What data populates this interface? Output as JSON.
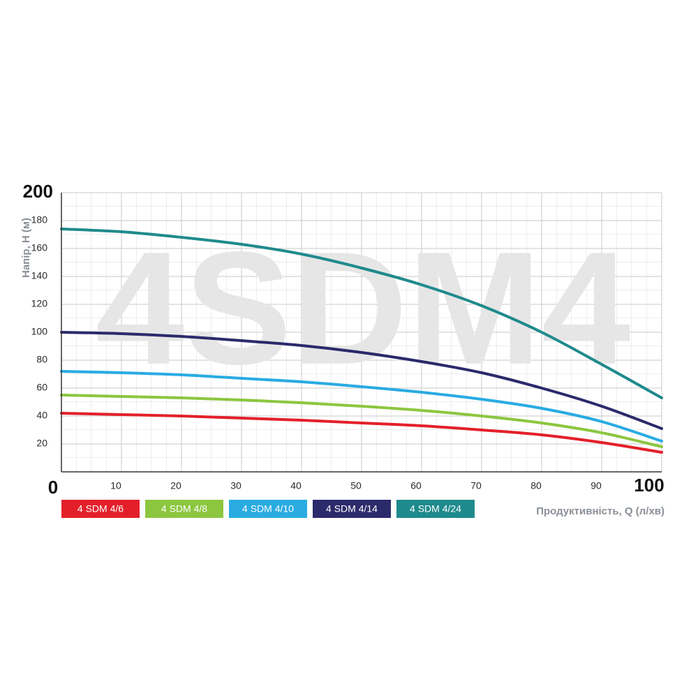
{
  "chart_data": {
    "type": "line",
    "watermark": "4SDM4",
    "y_label": "Напір, H (м)",
    "x_label": "Продуктивність, Q (л/хв)",
    "x": [
      0,
      10,
      20,
      30,
      40,
      50,
      60,
      70,
      80,
      90,
      100
    ],
    "xlim": [
      0,
      100
    ],
    "ylim": [
      0,
      200
    ],
    "xticks": [
      10,
      20,
      30,
      40,
      50,
      60,
      70,
      80,
      90,
      100
    ],
    "yticks": [
      0,
      20,
      40,
      60,
      80,
      100,
      120,
      140,
      160,
      180,
      200
    ],
    "grid": true,
    "series": [
      {
        "name": "4 SDM 4/6",
        "color": "#e3202a",
        "values": [
          42,
          41,
          40,
          38.5,
          37,
          35,
          33,
          30,
          26.5,
          21,
          14
        ]
      },
      {
        "name": "4 SDM 4/8",
        "color": "#8cc63f",
        "values": [
          55,
          54,
          53,
          51.5,
          49.5,
          47,
          44,
          40,
          35,
          28,
          18
        ]
      },
      {
        "name": "4 SDM 4/10",
        "color": "#29abe2",
        "values": [
          72,
          71,
          69.5,
          67,
          64.5,
          61,
          57,
          52,
          45.5,
          36,
          22
        ]
      },
      {
        "name": "4 SDM 4/14",
        "color": "#2b2a6b",
        "values": [
          100,
          99,
          97,
          94,
          90.5,
          85.5,
          79,
          71,
          60,
          47,
          31
        ]
      },
      {
        "name": "4 SDM 4/24",
        "color": "#1f8a8c",
        "values": [
          174,
          172,
          168,
          163,
          156,
          146,
          134,
          119,
          100,
          77,
          53
        ]
      }
    ]
  }
}
